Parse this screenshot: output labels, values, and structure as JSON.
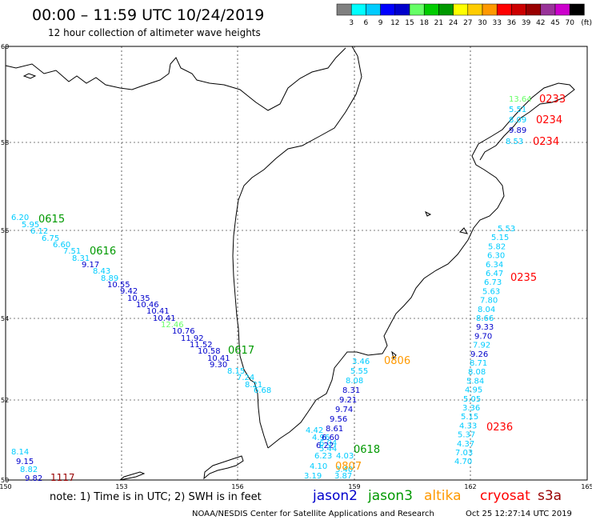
{
  "header": {
    "title": "00:00 – 11:59 UTC 10/24/2019",
    "subtitle": "12 hour collection of altimeter wave heights"
  },
  "legend": {
    "colors": [
      "#808080",
      "#00ffff",
      "#00ccff",
      "#0000ff",
      "#0000cc",
      "#66ff66",
      "#00cc00",
      "#009900",
      "#ffff00",
      "#ffcc00",
      "#ff9900",
      "#ff0000",
      "#cc0000",
      "#990000",
      "#993399",
      "#cc00cc",
      "#000000"
    ],
    "labels": [
      "3",
      "6",
      "9",
      "12",
      "15",
      "18",
      "21",
      "24",
      "27",
      "30",
      "33",
      "36",
      "39",
      "42",
      "45",
      "70"
    ],
    "unit": "(ft)"
  },
  "axes": {
    "lat_labels": [
      "60",
      "58",
      "56",
      "54",
      "52",
      "50"
    ],
    "lon_labels": [
      "150",
      "153",
      "156",
      "159",
      "162",
      "165"
    ]
  },
  "tracks": [
    {
      "name": "cryosat_1",
      "label": "0615",
      "label_color": "#009900",
      "values": [
        {
          "v": "6.20",
          "c": "#00ccff"
        },
        {
          "v": "5.95",
          "c": "#00ccff"
        },
        {
          "v": "6.12",
          "c": "#00ccff"
        },
        {
          "v": "6.75",
          "c": "#00ccff"
        },
        {
          "v": "6.60",
          "c": "#00ccff"
        },
        {
          "v": "7.51",
          "c": "#00ccff"
        },
        {
          "v": "8.31",
          "c": "#00ccff"
        },
        {
          "v": "9.17",
          "c": "#0000cc"
        },
        {
          "v": "8.43",
          "c": "#00ccff"
        },
        {
          "v": "8.89",
          "c": "#00ccff"
        },
        {
          "v": "10.55",
          "c": "#0000cc"
        },
        {
          "v": "9.42",
          "c": "#0000cc"
        },
        {
          "v": "10.35",
          "c": "#0000cc"
        },
        {
          "v": "10.46",
          "c": "#0000cc"
        },
        {
          "v": "10.41",
          "c": "#0000cc"
        },
        {
          "v": "10.41",
          "c": "#0000cc"
        },
        {
          "v": "12.46",
          "c": "#66ff66"
        },
        {
          "v": "10.76",
          "c": "#0000cc"
        },
        {
          "v": "11.92",
          "c": "#0000cc"
        },
        {
          "v": "11.52",
          "c": "#0000cc"
        },
        {
          "v": "10.58",
          "c": "#0000cc"
        },
        {
          "v": "10.41",
          "c": "#0000cc"
        },
        {
          "v": "9.30",
          "c": "#0000cc"
        },
        {
          "v": "8.15",
          "c": "#00ccff"
        },
        {
          "v": "7.24",
          "c": "#00ccff"
        },
        {
          "v": "8.21",
          "c": "#00ccff"
        },
        {
          "v": "6.68",
          "c": "#00ccff"
        }
      ],
      "labels2": [
        {
          "text": "0616",
          "color": "#009900"
        },
        {
          "text": "0617",
          "color": "#009900"
        }
      ]
    },
    {
      "name": "east_track",
      "values": [
        {
          "v": "13.64",
          "c": "#66ff66"
        },
        {
          "v": "5.51",
          "c": "#00ccff"
        },
        {
          "v": "8.09",
          "c": "#00ccff"
        },
        {
          "v": "9.89",
          "c": "#0000cc"
        },
        {
          "v": "8.53",
          "c": "#00ccff"
        }
      ],
      "labels": [
        {
          "text": "0233",
          "color": "#ff0000"
        },
        {
          "text": "0234",
          "color": "#ff0000"
        },
        {
          "text": "0234",
          "color": "#ff0000"
        }
      ]
    }
  ],
  "kam_track": {
    "values": [
      {
        "v": "5.53",
        "c": "#00ccff"
      },
      {
        "v": "5.15",
        "c": "#00ccff"
      },
      {
        "v": "5.82",
        "c": "#00ccff"
      },
      {
        "v": "6.30",
        "c": "#00ccff"
      },
      {
        "v": "6.34",
        "c": "#00ccff"
      },
      {
        "v": "6.47",
        "c": "#00ccff"
      },
      {
        "v": "6.73",
        "c": "#00ccff"
      },
      {
        "v": "5.63",
        "c": "#00ccff"
      },
      {
        "v": "7.80",
        "c": "#00ccff"
      },
      {
        "v": "8.04",
        "c": "#00ccff"
      },
      {
        "v": "8.66",
        "c": "#00ccff"
      },
      {
        "v": "9.33",
        "c": "#0000cc"
      },
      {
        "v": "9.70",
        "c": "#0000cc"
      },
      {
        "v": "7.92",
        "c": "#00ccff"
      },
      {
        "v": "9.26",
        "c": "#0000cc"
      },
      {
        "v": "8.71",
        "c": "#00ccff"
      },
      {
        "v": "8.08",
        "c": "#00ccff"
      },
      {
        "v": "5.84",
        "c": "#00ccff"
      },
      {
        "v": "4.95",
        "c": "#00ccff"
      },
      {
        "v": "5.05",
        "c": "#00ccff"
      },
      {
        "v": "3.36",
        "c": "#00ccff"
      },
      {
        "v": "5.15",
        "c": "#00ccff"
      },
      {
        "v": "4.33",
        "c": "#00ccff"
      },
      {
        "v": "5.37",
        "c": "#00ccff"
      },
      {
        "v": "4.37",
        "c": "#00ccff"
      },
      {
        "v": "7.03",
        "c": "#00ccff"
      },
      {
        "v": "4.70",
        "c": "#00ccff"
      }
    ],
    "labels": [
      {
        "text": "0235",
        "color": "#ff0000"
      },
      {
        "text": "0236",
        "color": "#ff0000"
      }
    ]
  },
  "kuril_track": {
    "values": [
      {
        "v": "3.46",
        "c": "#00ccff"
      },
      {
        "v": "5.55",
        "c": "#00ccff"
      },
      {
        "v": "8.08",
        "c": "#00ccff"
      },
      {
        "v": "8.31",
        "c": "#0000cc"
      },
      {
        "v": "9.21",
        "c": "#0000cc"
      },
      {
        "v": "9.74",
        "c": "#0000cc"
      },
      {
        "v": "9.56",
        "c": "#0000cc"
      },
      {
        "v": "8.61",
        "c": "#0000cc"
      },
      {
        "v": "4.42",
        "c": "#00ccff"
      },
      {
        "v": "4.96",
        "c": "#00ccff"
      },
      {
        "v": "6.60",
        "c": "#0000cc"
      },
      {
        "v": "6.04",
        "c": "#00ccff"
      },
      {
        "v": "6.22",
        "c": "#0000cc"
      },
      {
        "v": "5.44",
        "c": "#00ccff"
      },
      {
        "v": "6.23",
        "c": "#00ccff"
      },
      {
        "v": "4.03",
        "c": "#00ccff"
      },
      {
        "v": "4.10",
        "c": "#00ccff"
      },
      {
        "v": "3.19",
        "c": "#00ccff"
      },
      {
        "v": "3.40",
        "c": "#00ccff"
      },
      {
        "v": "3.87",
        "c": "#00ccff"
      }
    ],
    "labels": [
      {
        "text": "0806",
        "color": "#ff9900"
      },
      {
        "text": "0618",
        "color": "#009900"
      },
      {
        "text": "0807",
        "color": "#ff9900"
      }
    ]
  },
  "sw_track": {
    "values": [
      {
        "v": "8.14",
        "c": "#00ccff"
      },
      {
        "v": "9.15",
        "c": "#0000cc"
      },
      {
        "v": "8.82",
        "c": "#00ccff"
      },
      {
        "v": "9.82",
        "c": "#0000cc"
      }
    ],
    "label": {
      "text": "1117",
      "color": "#990000"
    }
  },
  "footer": {
    "note": "note: 1) Time is in UTC; 2) SWH is in feet",
    "satellites": [
      {
        "name": "jason2",
        "color": "#0000cc"
      },
      {
        "name": "jason3",
        "color": "#009900"
      },
      {
        "name": "altika",
        "color": "#ff9900"
      },
      {
        "name": "cryosat",
        "color": "#ff0000"
      },
      {
        "name": "s3a",
        "color": "#990000"
      }
    ],
    "credit": "NOAA/NESDIS Center for Satellite Applications and Research",
    "timestamp": "Oct 25 12:27:14 UTC 2019"
  }
}
